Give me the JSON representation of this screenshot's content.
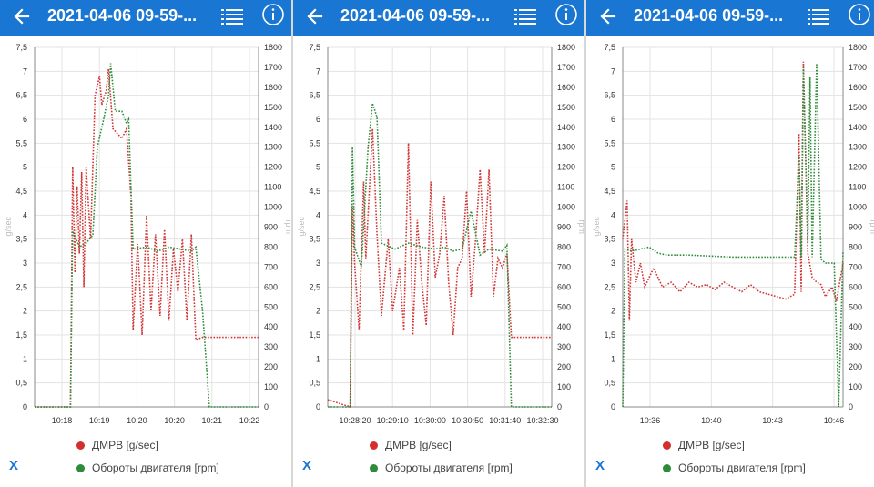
{
  "colors": {
    "topbar": "#1976d2",
    "dmrv": "#d23434",
    "rpm": "#2e8b3a",
    "grid": "#e3e3e3",
    "axis_text": "#333333",
    "unit_text": "#bdbdbd"
  },
  "icons": {
    "back": "arrow-left-icon",
    "list": "list-icon",
    "info": "info-icon"
  },
  "panels": [
    {
      "title": "2021-04-06 09-59-...",
      "legend": {
        "series1": "ДМРВ [g/sec]",
        "series2": "Обороты двигателя [rpm]",
        "x_button": "X"
      },
      "chart_data": {
        "type": "line",
        "left_unit": "g/sec",
        "right_unit": "rpm",
        "left_ticks": [
          "0",
          "0,5",
          "1",
          "1,5",
          "2",
          "2,5",
          "3",
          "3,5",
          "4",
          "4,5",
          "5",
          "5,5",
          "6",
          "6,5",
          "7",
          "7,5"
        ],
        "right_ticks": [
          "0",
          "100",
          "200",
          "300",
          "400",
          "500",
          "600",
          "700",
          "800",
          "900",
          "1000",
          "1100",
          "1200",
          "1300",
          "1400",
          "1500",
          "1600",
          "1700",
          "1800"
        ],
        "ylim_left": [
          0,
          7.5
        ],
        "ylim_right": [
          0,
          1800
        ],
        "x_ticks": [
          "10:18",
          "10:19",
          "10:20",
          "10:20",
          "10:21",
          "10:22"
        ],
        "grid": true,
        "series": [
          {
            "name": "ДМРВ [g/sec]",
            "axis": "left",
            "points": [
              [
                0,
                0
              ],
              [
                0.16,
                0
              ],
              [
                0.17,
                5
              ],
              [
                0.18,
                2.8
              ],
              [
                0.19,
                4.6
              ],
              [
                0.2,
                3.2
              ],
              [
                0.21,
                4.9
              ],
              [
                0.22,
                2.5
              ],
              [
                0.23,
                5
              ],
              [
                0.25,
                3.5
              ],
              [
                0.27,
                6.5
              ],
              [
                0.29,
                6.9
              ],
              [
                0.3,
                6.3
              ],
              [
                0.32,
                6.6
              ],
              [
                0.33,
                7.05
              ],
              [
                0.35,
                5.8
              ],
              [
                0.37,
                5.7
              ],
              [
                0.39,
                5.6
              ],
              [
                0.41,
                5.8
              ],
              [
                0.43,
                4.4
              ],
              [
                0.44,
                1.6
              ],
              [
                0.46,
                3.4
              ],
              [
                0.47,
                2.5
              ],
              [
                0.48,
                1.5
              ],
              [
                0.5,
                4
              ],
              [
                0.52,
                2
              ],
              [
                0.54,
                3.6
              ],
              [
                0.56,
                1.9
              ],
              [
                0.58,
                3.7
              ],
              [
                0.6,
                1.8
              ],
              [
                0.62,
                3.3
              ],
              [
                0.64,
                2.4
              ],
              [
                0.66,
                3.5
              ],
              [
                0.68,
                1.8
              ],
              [
                0.7,
                3.6
              ],
              [
                0.72,
                1.4
              ],
              [
                0.75,
                1.45
              ],
              [
                0.8,
                1.45
              ],
              [
                1,
                1.45
              ]
            ]
          },
          {
            "name": "Обороты двигателя [rpm]",
            "axis": "right",
            "points": [
              [
                0,
                0
              ],
              [
                0.16,
                0
              ],
              [
                0.17,
                880
              ],
              [
                0.2,
                800
              ],
              [
                0.23,
                820
              ],
              [
                0.26,
                860
              ],
              [
                0.28,
                1300
              ],
              [
                0.31,
                1450
              ],
              [
                0.33,
                1560
              ],
              [
                0.34,
                1720
              ],
              [
                0.36,
                1480
              ],
              [
                0.39,
                1480
              ],
              [
                0.41,
                1420
              ],
              [
                0.42,
                1440
              ],
              [
                0.44,
                790
              ],
              [
                0.5,
                800
              ],
              [
                0.55,
                780
              ],
              [
                0.6,
                800
              ],
              [
                0.65,
                790
              ],
              [
                0.7,
                780
              ],
              [
                0.72,
                800
              ],
              [
                0.75,
                480
              ],
              [
                0.78,
                0
              ],
              [
                1,
                0
              ]
            ]
          }
        ]
      }
    },
    {
      "title": "2021-04-06 09-59-...",
      "legend": {
        "series1": "ДМРВ [g/sec]",
        "series2": "Обороты двигателя [rpm]",
        "x_button": "X"
      },
      "chart_data": {
        "type": "line",
        "left_unit": "g/sec",
        "right_unit": "rpm",
        "left_ticks": [
          "0",
          "0,5",
          "1",
          "1,5",
          "2",
          "2,5",
          "3",
          "3,5",
          "4",
          "4,5",
          "5",
          "5,5",
          "6",
          "6,5",
          "7",
          "7,5"
        ],
        "right_ticks": [
          "0",
          "100",
          "200",
          "300",
          "400",
          "500",
          "600",
          "700",
          "800",
          "900",
          "1000",
          "1100",
          "1200",
          "1300",
          "1400",
          "1500",
          "1600",
          "1700",
          "1800"
        ],
        "ylim_left": [
          0,
          7.5
        ],
        "ylim_right": [
          0,
          1800
        ],
        "x_ticks": [
          "10:28:20",
          "10:29:10",
          "10:30:00",
          "10:30:50",
          "10:31:40",
          "10:32:30"
        ],
        "grid": true,
        "series": [
          {
            "name": "ДМРВ [g/sec]",
            "axis": "left",
            "points": [
              [
                0,
                0.15
              ],
              [
                0.1,
                0
              ],
              [
                0.11,
                4.2
              ],
              [
                0.12,
                3
              ],
              [
                0.14,
                1.6
              ],
              [
                0.16,
                4.7
              ],
              [
                0.17,
                3.1
              ],
              [
                0.2,
                5.8
              ],
              [
                0.22,
                3.6
              ],
              [
                0.24,
                1.9
              ],
              [
                0.27,
                3.5
              ],
              [
                0.29,
                2
              ],
              [
                0.32,
                2.9
              ],
              [
                0.34,
                1.6
              ],
              [
                0.36,
                5.5
              ],
              [
                0.38,
                1.5
              ],
              [
                0.4,
                3.9
              ],
              [
                0.42,
                2.6
              ],
              [
                0.44,
                1.7
              ],
              [
                0.46,
                4.7
              ],
              [
                0.48,
                2.7
              ],
              [
                0.5,
                3.2
              ],
              [
                0.52,
                4.4
              ],
              [
                0.54,
                2.6
              ],
              [
                0.56,
                1.5
              ],
              [
                0.58,
                2.9
              ],
              [
                0.6,
                3.1
              ],
              [
                0.62,
                4.5
              ],
              [
                0.64,
                2.3
              ],
              [
                0.66,
                3.5
              ],
              [
                0.68,
                4.95
              ],
              [
                0.7,
                3.2
              ],
              [
                0.72,
                4.95
              ],
              [
                0.74,
                2.3
              ],
              [
                0.76,
                3.1
              ],
              [
                0.78,
                2.9
              ],
              [
                0.8,
                3.2
              ],
              [
                0.82,
                1.45
              ],
              [
                0.9,
                1.45
              ],
              [
                1,
                1.45
              ]
            ]
          },
          {
            "name": "Обороты двигателя [rpm]",
            "axis": "right",
            "points": [
              [
                0,
                0
              ],
              [
                0.1,
                0
              ],
              [
                0.11,
                1300
              ],
              [
                0.12,
                800
              ],
              [
                0.15,
                700
              ],
              [
                0.18,
                1300
              ],
              [
                0.2,
                1520
              ],
              [
                0.22,
                1450
              ],
              [
                0.24,
                820
              ],
              [
                0.3,
                790
              ],
              [
                0.36,
                820
              ],
              [
                0.42,
                800
              ],
              [
                0.48,
                790
              ],
              [
                0.52,
                800
              ],
              [
                0.56,
                780
              ],
              [
                0.6,
                790
              ],
              [
                0.64,
                980
              ],
              [
                0.68,
                760
              ],
              [
                0.72,
                790
              ],
              [
                0.78,
                780
              ],
              [
                0.8,
                810
              ],
              [
                0.82,
                0
              ],
              [
                1,
                0
              ]
            ]
          }
        ]
      }
    },
    {
      "title": "2021-04-06 09-59-...",
      "legend": {
        "series1": "ДМРВ [g/sec]",
        "series2": "Обороты двигателя [rpm]",
        "x_button": "X"
      },
      "chart_data": {
        "type": "line",
        "left_unit": "g/sec",
        "right_unit": "rpm",
        "left_ticks": [
          "0",
          "0,5",
          "1",
          "1,5",
          "2",
          "2,5",
          "3",
          "3,5",
          "4",
          "4,5",
          "5",
          "5,5",
          "6",
          "6,5",
          "7",
          "7,5"
        ],
        "right_ticks": [
          "0",
          "100",
          "200",
          "300",
          "400",
          "500",
          "600",
          "700",
          "800",
          "900",
          "1000",
          "1100",
          "1200",
          "1300",
          "1400",
          "1500",
          "1600",
          "1700",
          "1800"
        ],
        "ylim_left": [
          0,
          7.5
        ],
        "ylim_right": [
          0,
          1800
        ],
        "x_ticks": [
          "10:36",
          "10:40",
          "10:43",
          "10:46"
        ],
        "grid": true,
        "series": [
          {
            "name": "ДМРВ [g/sec]",
            "axis": "left",
            "points": [
              [
                0,
                3.5
              ],
              [
                0.02,
                4.3
              ],
              [
                0.03,
                1.8
              ],
              [
                0.04,
                3.5
              ],
              [
                0.06,
                2.6
              ],
              [
                0.08,
                3
              ],
              [
                0.1,
                2.5
              ],
              [
                0.14,
                2.9
              ],
              [
                0.18,
                2.5
              ],
              [
                0.22,
                2.6
              ],
              [
                0.26,
                2.4
              ],
              [
                0.3,
                2.6
              ],
              [
                0.34,
                2.5
              ],
              [
                0.38,
                2.55
              ],
              [
                0.42,
                2.45
              ],
              [
                0.46,
                2.6
              ],
              [
                0.5,
                2.5
              ],
              [
                0.54,
                2.4
              ],
              [
                0.58,
                2.55
              ],
              [
                0.62,
                2.4
              ],
              [
                0.66,
                2.35
              ],
              [
                0.7,
                2.3
              ],
              [
                0.74,
                2.25
              ],
              [
                0.78,
                2.35
              ],
              [
                0.8,
                5.7
              ],
              [
                0.81,
                2.4
              ],
              [
                0.82,
                7.2
              ],
              [
                0.84,
                3.2
              ],
              [
                0.86,
                2.7
              ],
              [
                0.88,
                2.6
              ],
              [
                0.9,
                2.55
              ],
              [
                0.92,
                2.3
              ],
              [
                0.95,
                2.5
              ],
              [
                0.97,
                2.2
              ],
              [
                1,
                3
              ]
            ]
          },
          {
            "name": "Обороты двигателя [rpm]",
            "axis": "right",
            "points": [
              [
                0,
                0
              ],
              [
                0.01,
                790
              ],
              [
                0.04,
                780
              ],
              [
                0.08,
                790
              ],
              [
                0.12,
                800
              ],
              [
                0.16,
                770
              ],
              [
                0.2,
                760
              ],
              [
                0.3,
                760
              ],
              [
                0.4,
                755
              ],
              [
                0.5,
                750
              ],
              [
                0.6,
                750
              ],
              [
                0.7,
                750
              ],
              [
                0.78,
                750
              ],
              [
                0.8,
                1250
              ],
              [
                0.81,
                750
              ],
              [
                0.82,
                1700
              ],
              [
                0.84,
                820
              ],
              [
                0.85,
                1650
              ],
              [
                0.86,
                750
              ],
              [
                0.88,
                1720
              ],
              [
                0.9,
                740
              ],
              [
                0.92,
                720
              ],
              [
                0.96,
                720
              ],
              [
                0.98,
                0
              ],
              [
                1,
                780
              ]
            ]
          }
        ]
      }
    }
  ]
}
